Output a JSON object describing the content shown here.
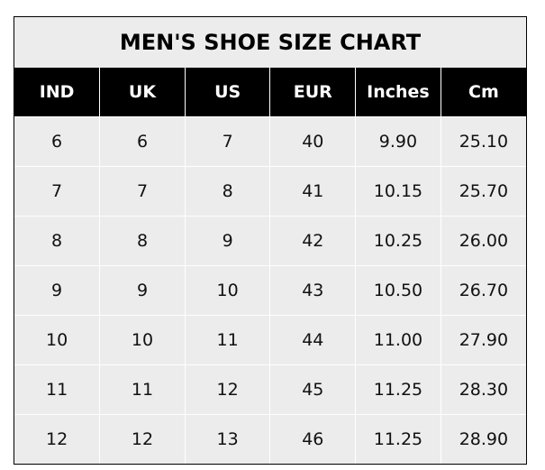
{
  "chart_data": {
    "type": "table",
    "title": "MEN'S SHOE SIZE CHART",
    "columns": [
      "IND",
      "UK",
      "US",
      "EUR",
      "Inches",
      "Cm"
    ],
    "rows": [
      [
        "6",
        "6",
        "7",
        "40",
        "9.90",
        "25.10"
      ],
      [
        "7",
        "7",
        "8",
        "41",
        "10.15",
        "25.70"
      ],
      [
        "8",
        "8",
        "9",
        "42",
        "10.25",
        "26.00"
      ],
      [
        "9",
        "9",
        "10",
        "43",
        "10.50",
        "26.70"
      ],
      [
        "10",
        "10",
        "11",
        "44",
        "11.00",
        "27.90"
      ],
      [
        "11",
        "11",
        "12",
        "45",
        "11.25",
        "28.30"
      ],
      [
        "12",
        "12",
        "13",
        "46",
        "11.25",
        "28.90"
      ]
    ],
    "colors": {
      "header_bg": "#000000",
      "header_text": "#ffffff",
      "cell_bg": "#ececec",
      "grid": "#ffffff"
    }
  }
}
